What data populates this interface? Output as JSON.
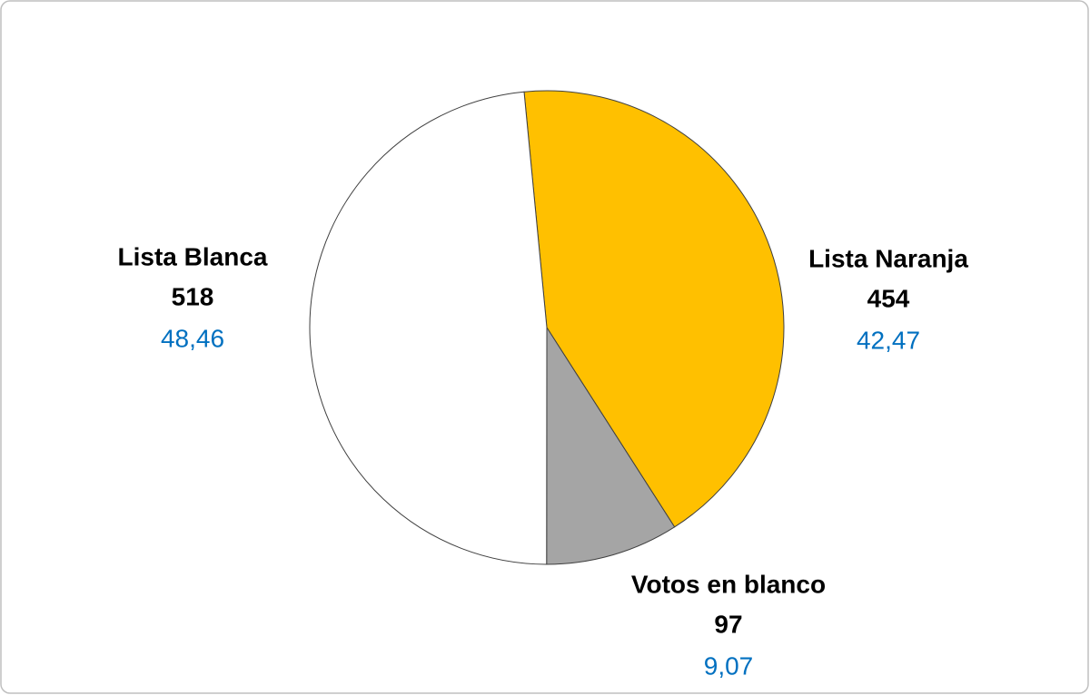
{
  "chart_data": {
    "type": "pie",
    "categories": [
      "Lista Naranja",
      "Votos en blanco",
      "Lista Blanca"
    ],
    "values": [
      454,
      97,
      518
    ],
    "colors": [
      "#FFC000",
      "#A5A5A5",
      "#FFFFFF"
    ],
    "percentages": {
      "values": [
        42.47,
        9.07,
        48.46
      ],
      "value_labels": [
        "42,47",
        "9,07",
        "48,46"
      ]
    }
  }
}
